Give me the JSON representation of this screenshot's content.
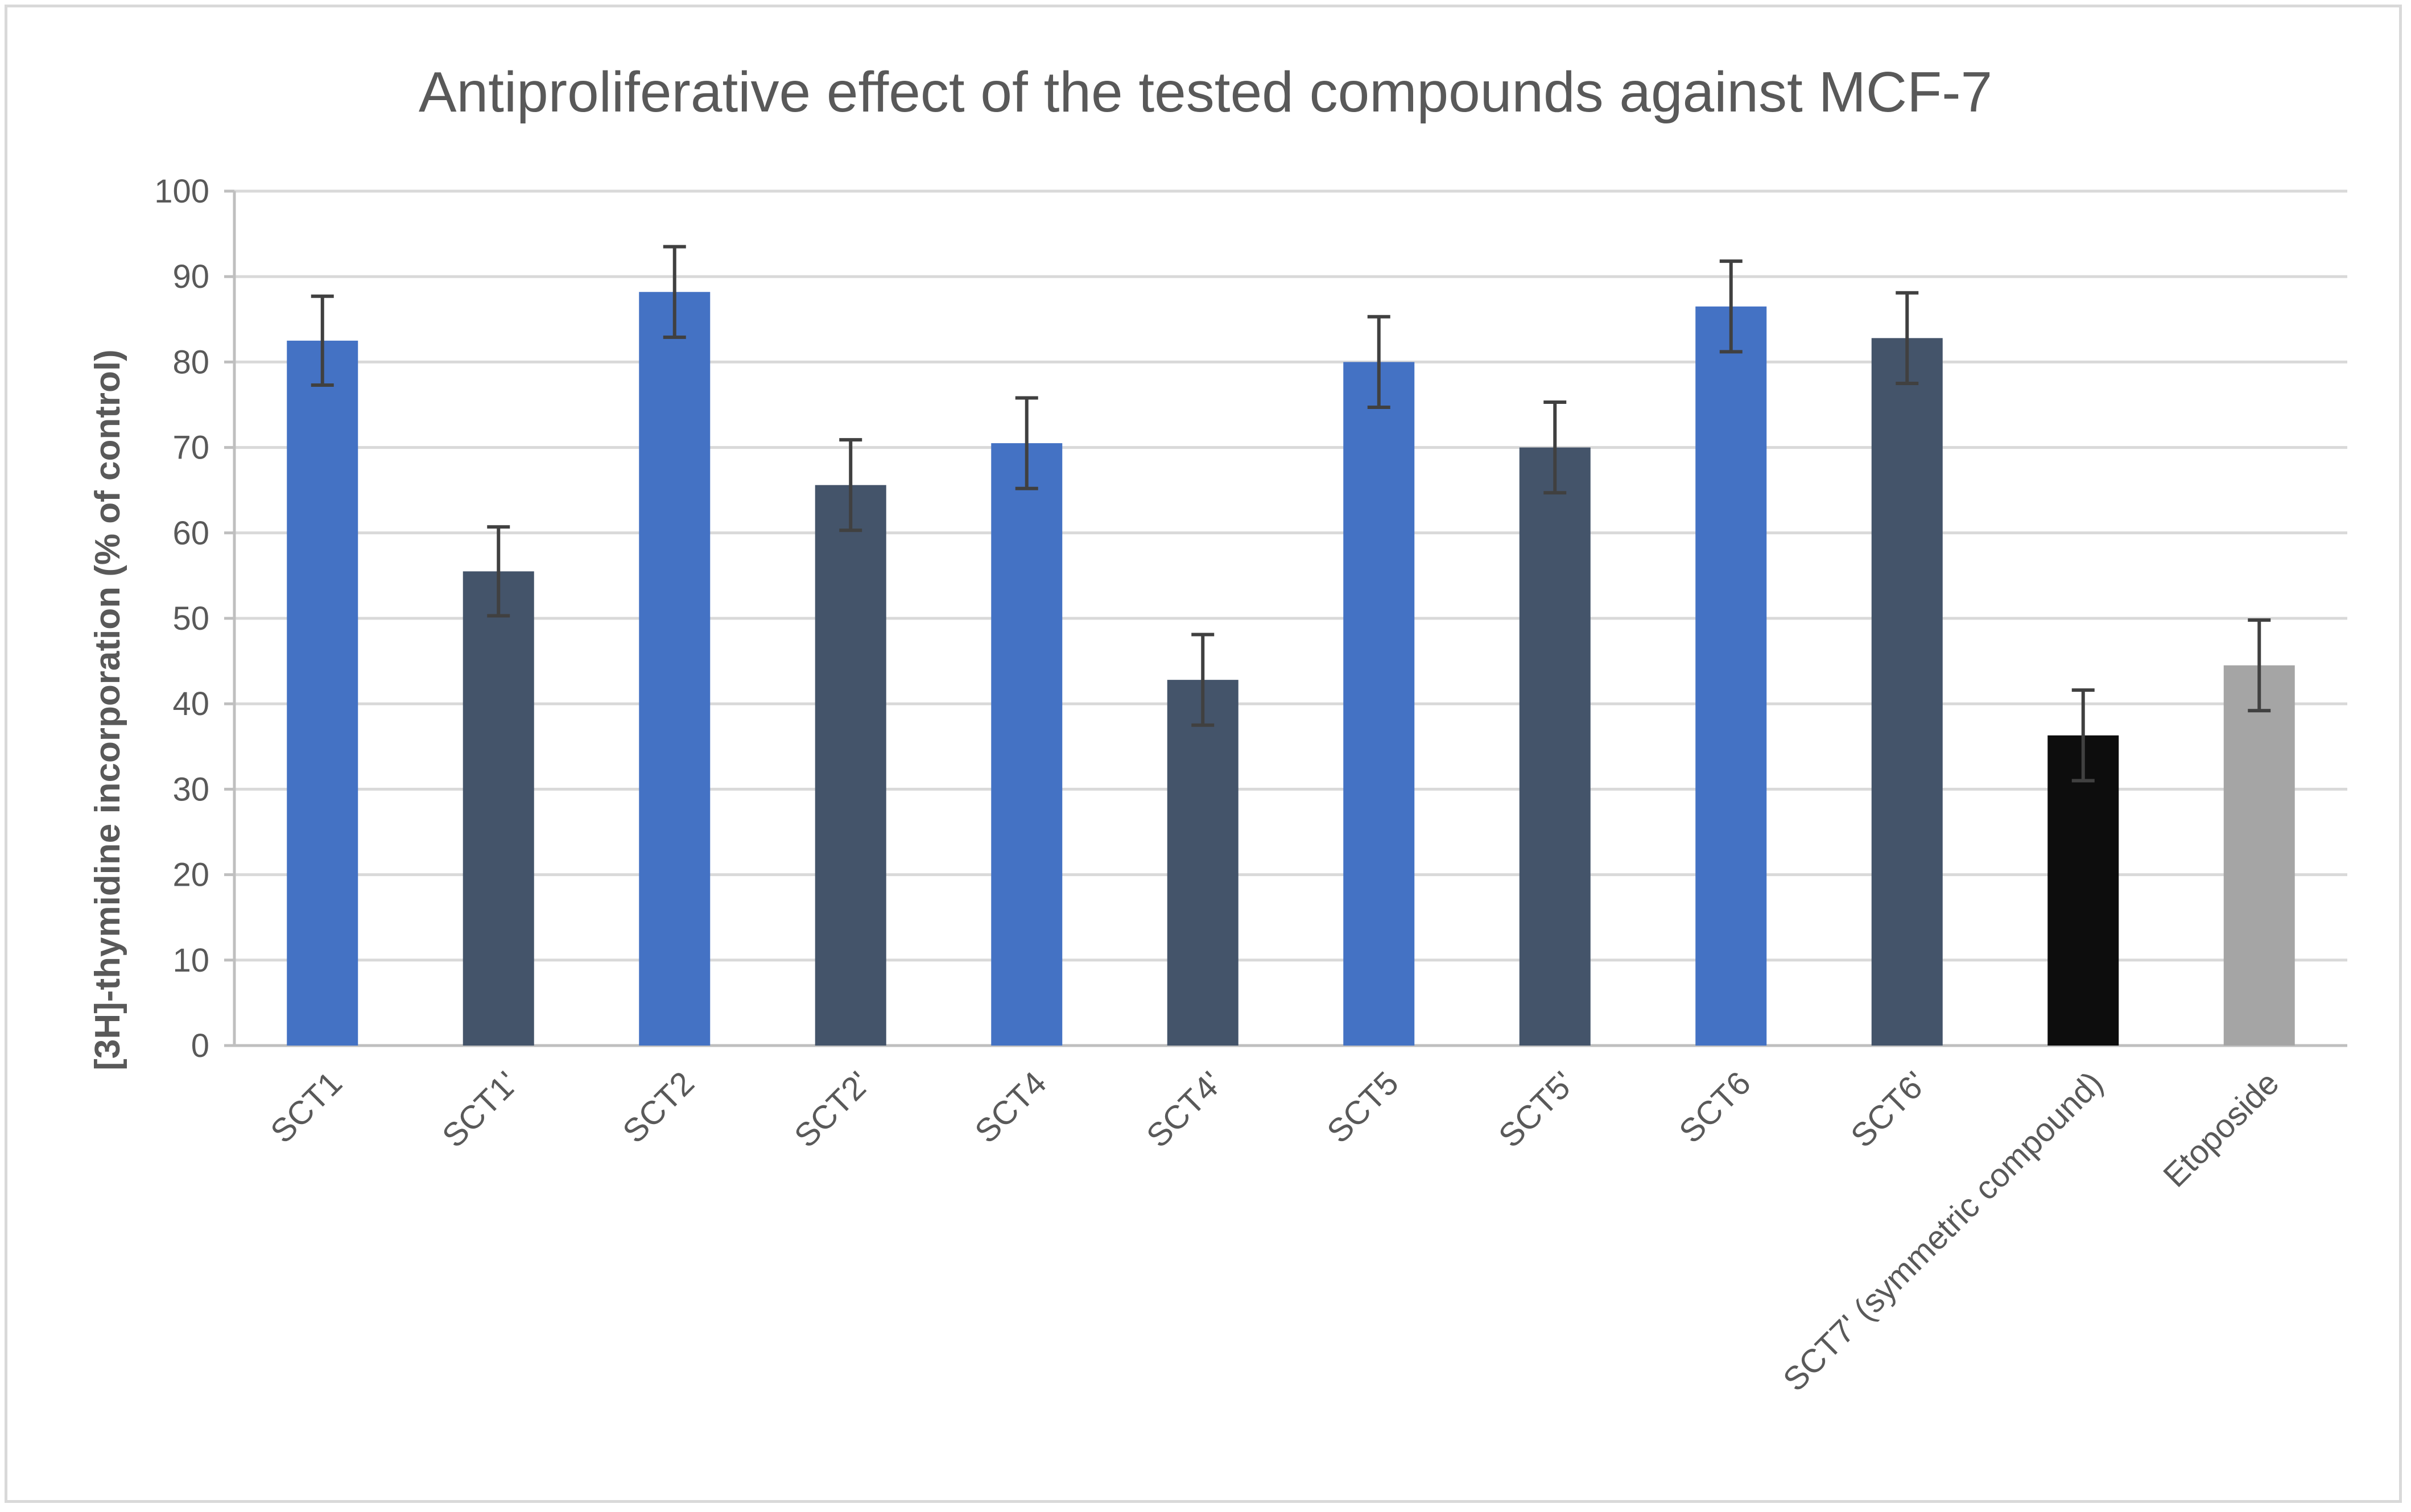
{
  "chart_data": {
    "type": "bar",
    "title": "Antiproliferative effect of the tested compounds  against MCF-7",
    "xlabel": "",
    "ylabel": "[3H]-thymidine incorporation (% of control)",
    "ylim": [
      0,
      100
    ],
    "yticks": [
      0,
      10,
      20,
      30,
      40,
      50,
      60,
      70,
      80,
      90,
      100
    ],
    "grid": true,
    "legend": "none",
    "categories": [
      "SCT1",
      "SCT1'",
      "SCT2",
      "SCT2'",
      "SCT4",
      "SCT4'",
      "SCT5",
      "SCT5'",
      "SCT6",
      "SCT6'",
      "SCT7' (symmetric compound)",
      "Etoposide"
    ],
    "values": [
      82.5,
      55.5,
      88.2,
      65.6,
      70.5,
      42.8,
      80.0,
      70.0,
      86.5,
      82.8,
      36.3,
      44.5
    ],
    "error": [
      5.2,
      5.2,
      5.3,
      5.3,
      5.3,
      5.3,
      5.3,
      5.3,
      5.3,
      5.3,
      5.3,
      5.3
    ],
    "colors": [
      "#4472c4",
      "#44546a",
      "#4472c4",
      "#44546a",
      "#4472c4",
      "#44546a",
      "#4472c4",
      "#44546a",
      "#4472c4",
      "#44546a",
      "#0d0d0d",
      "#a5a5a5"
    ],
    "error_color": "#404040",
    "grid_color": "#d9d9d9",
    "axis_color": "#bfbfbf"
  }
}
